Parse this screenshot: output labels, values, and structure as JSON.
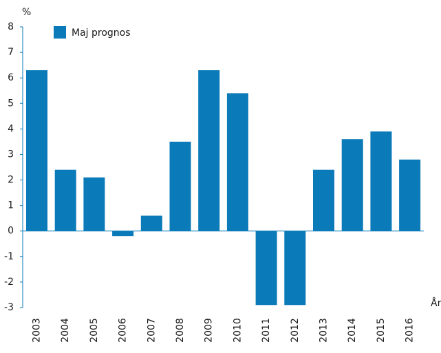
{
  "chart_data": {
    "type": "bar",
    "y_label": "%",
    "x_label": "År",
    "categories": [
      "2003",
      "2004",
      "2005",
      "2006",
      "2007",
      "2008",
      "2009",
      "2010",
      "2011",
      "2012",
      "2013",
      "2014",
      "2015",
      "2016"
    ],
    "series": [
      {
        "name": "Maj prognos",
        "color": "#0a7ab8",
        "values": [
          6.3,
          2.4,
          2.1,
          -0.2,
          0.6,
          3.5,
          6.3,
          5.4,
          -2.9,
          -2.9,
          2.4,
          3.6,
          3.9,
          2.8
        ]
      }
    ],
    "ylim": [
      -3,
      8
    ],
    "yticks": [
      -3,
      -2,
      -1,
      0,
      1,
      2,
      3,
      4,
      5,
      6,
      7,
      8
    ],
    "legend": "upper left"
  }
}
